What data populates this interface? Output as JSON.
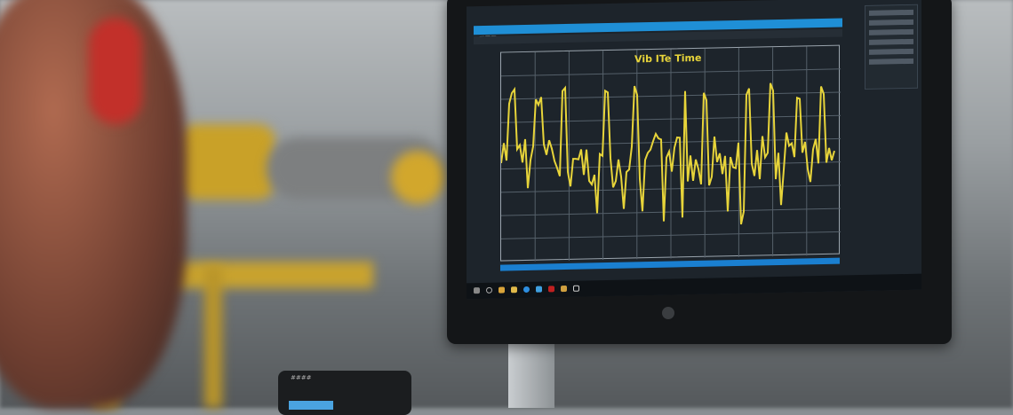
{
  "scene": "photo",
  "monitor": {
    "chart_title": "Vib ITe Time",
    "line_color": "#e7d43a",
    "accent": "#1f8fd6",
    "device_label": "####"
  }
}
